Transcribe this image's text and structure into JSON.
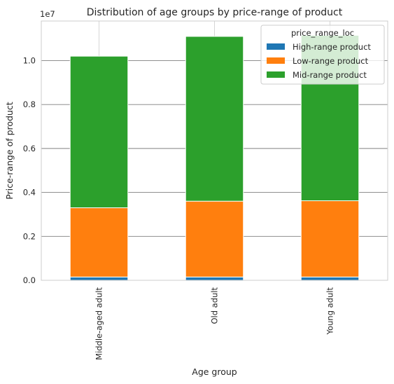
{
  "chart_data": {
    "type": "bar",
    "stacked": true,
    "title": "Distribution of age groups by price-range of product",
    "xlabel": "Age group",
    "ylabel": "Price-range of product",
    "y_scale_label": "1e7",
    "y_scale": 10000000,
    "ylim": [
      0,
      1.18
    ],
    "yticks": [
      "0.0",
      "0.2",
      "0.4",
      "0.6",
      "0.8",
      "1.0"
    ],
    "ytick_values": [
      0.0,
      0.2,
      0.4,
      0.6,
      0.8,
      1.0
    ],
    "categories": [
      "Middle-aged adult",
      "Old adult",
      "Young adult"
    ],
    "grid": true,
    "legend_title": "price_range_loc",
    "legend_position": "top-right",
    "series": [
      {
        "name": "High-range product",
        "color": "#1f77b4",
        "values": [
          0.015,
          0.015,
          0.015
        ]
      },
      {
        "name": "Low-range product",
        "color": "#ff7f0e",
        "values": [
          0.315,
          0.345,
          0.347
        ]
      },
      {
        "name": "Mid-range product",
        "color": "#2ca02c",
        "values": [
          0.69,
          0.75,
          0.753
        ]
      }
    ]
  }
}
